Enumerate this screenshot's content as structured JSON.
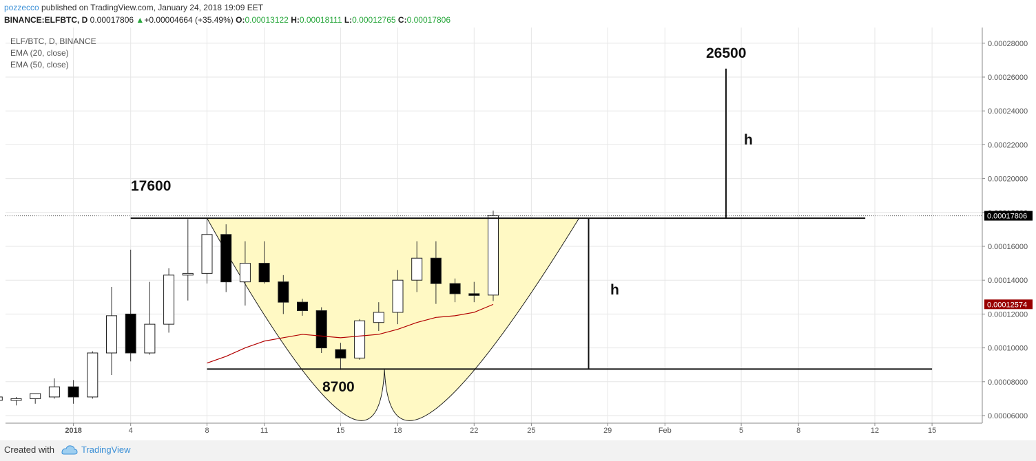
{
  "header": {
    "author": "pozzecco",
    "published_text": "published on TradingView.com, January 24, 2018 19:09 EET",
    "symbol_line": "BINANCE:ELFBTC, D",
    "last_price": "0.00017806",
    "change_arrow": "▲",
    "change": "+0.00004664 (+35.49%)",
    "open_label": "O:",
    "open": "0.00013122",
    "high_label": "H:",
    "high": "0.00018111",
    "low_label": "L:",
    "low": "0.00012765",
    "close_label": "C:",
    "close": "0.00017806"
  },
  "legend": {
    "symbol": "ELF/BTC, D, BINANCE",
    "ema20": "EMA (20, close)",
    "ema50": "EMA (50, close)"
  },
  "footer": {
    "created_with": "Created with",
    "brand": "TradingView"
  },
  "colors": {
    "up_candle": "#ffffff",
    "down_candle": "#000000",
    "ema_line": "#b20000",
    "cup_fill": "#fff9c4",
    "price_tag_last": "#000000",
    "price_tag_ema": "#990000",
    "grid": "#e6e6e6"
  },
  "chart_data": {
    "type": "candlestick",
    "title": "",
    "x_axis_ticks": [
      "2018",
      "4",
      "8",
      "11",
      "15",
      "18",
      "22",
      "25",
      "29",
      "Feb",
      "5",
      "8",
      "12",
      "15"
    ],
    "y_axis_ticks": [
      "0.00006000",
      "0.00008000",
      "0.00010000",
      "0.00012000",
      "0.00014000",
      "0.00016000",
      "0.00018000",
      "0.00020000",
      "0.00022000",
      "0.00024000",
      "0.00026000",
      "0.00028000"
    ],
    "ylim": [
      5.45e-05,
      2.92e-05
    ],
    "price_tags": [
      {
        "label": "0.00017806",
        "value": 0.00017806,
        "style": "last"
      },
      {
        "label": "0.00012574",
        "value": 0.00012574,
        "style": "ema"
      }
    ],
    "candles": [
      {
        "date": "2017-12-28",
        "o": 6.9e-05,
        "h": 7.3e-05,
        "l": 6.6e-05,
        "c": 7.1e-05
      },
      {
        "date": "2017-12-29",
        "o": 6.9e-05,
        "h": 7.1e-05,
        "l": 6.6e-05,
        "c": 7e-05
      },
      {
        "date": "2017-12-30",
        "o": 7e-05,
        "h": 7.3e-05,
        "l": 6.7e-05,
        "c": 7.3e-05
      },
      {
        "date": "2017-12-31",
        "o": 7.1e-05,
        "h": 8.2e-05,
        "l": 7e-05,
        "c": 7.7e-05
      },
      {
        "date": "2018-01-01",
        "o": 7.7e-05,
        "h": 8.1e-05,
        "l": 6.7e-05,
        "c": 7.1e-05
      },
      {
        "date": "2018-01-02",
        "o": 7.1e-05,
        "h": 9.8e-05,
        "l": 7e-05,
        "c": 9.7e-05
      },
      {
        "date": "2018-01-03",
        "o": 9.7e-05,
        "h": 0.000136,
        "l": 8.4e-05,
        "c": 0.000119
      },
      {
        "date": "2018-01-04",
        "o": 0.00012,
        "h": 0.000158,
        "l": 9.2e-05,
        "c": 9.7e-05
      },
      {
        "date": "2018-01-05",
        "o": 9.7e-05,
        "h": 0.000139,
        "l": 9.6e-05,
        "c": 0.000114
      },
      {
        "date": "2018-01-06",
        "o": 0.000114,
        "h": 0.000147,
        "l": 0.000109,
        "c": 0.000143
      },
      {
        "date": "2018-01-07",
        "o": 0.000143,
        "h": 0.000176,
        "l": 0.000128,
        "c": 0.000144
      },
      {
        "date": "2018-01-08",
        "o": 0.000144,
        "h": 0.000176,
        "l": 0.000138,
        "c": 0.000167
      },
      {
        "date": "2018-01-09",
        "o": 0.000167,
        "h": 0.000173,
        "l": 0.000133,
        "c": 0.000139
      },
      {
        "date": "2018-01-10",
        "o": 0.000139,
        "h": 0.000163,
        "l": 0.000125,
        "c": 0.00015
      },
      {
        "date": "2018-01-11",
        "o": 0.00015,
        "h": 0.000163,
        "l": 0.000138,
        "c": 0.000139
      },
      {
        "date": "2018-01-12",
        "o": 0.000139,
        "h": 0.000143,
        "l": 0.00012,
        "c": 0.000127
      },
      {
        "date": "2018-01-13",
        "o": 0.000127,
        "h": 0.000129,
        "l": 0.000119,
        "c": 0.000122
      },
      {
        "date": "2018-01-14",
        "o": 0.000122,
        "h": 0.000124,
        "l": 9.7e-05,
        "c": 0.0001
      },
      {
        "date": "2018-01-15",
        "o": 9.9e-05,
        "h": 0.000103,
        "l": 8.7e-05,
        "c": 9.4e-05
      },
      {
        "date": "2018-01-16",
        "o": 9.4e-05,
        "h": 0.000117,
        "l": 9.3e-05,
        "c": 0.000116
      },
      {
        "date": "2018-01-17",
        "o": 0.000115,
        "h": 0.000127,
        "l": 0.00011,
        "c": 0.000121
      },
      {
        "date": "2018-01-18",
        "o": 0.000121,
        "h": 0.000146,
        "l": 0.000114,
        "c": 0.00014
      },
      {
        "date": "2018-01-19",
        "o": 0.00014,
        "h": 0.000163,
        "l": 0.000133,
        "c": 0.000153
      },
      {
        "date": "2018-01-20",
        "o": 0.000153,
        "h": 0.000163,
        "l": 0.000126,
        "c": 0.000138
      },
      {
        "date": "2018-01-21",
        "o": 0.000138,
        "h": 0.000141,
        "l": 0.000127,
        "c": 0.000132
      },
      {
        "date": "2018-01-22",
        "o": 0.000132,
        "h": 0.000139,
        "l": 0.000127,
        "c": 0.000131
      },
      {
        "date": "2018-01-23",
        "o": 0.0001312,
        "h": 0.0001811,
        "l": 0.0001277,
        "c": 0.0001781
      }
    ],
    "ema_line": {
      "name": "EMA",
      "values": [
        {
          "date": "2018-01-08",
          "v": 9.1e-05
        },
        {
          "date": "2018-01-09",
          "v": 9.5e-05
        },
        {
          "date": "2018-01-10",
          "v": 0.0001
        },
        {
          "date": "2018-01-11",
          "v": 0.000104
        },
        {
          "date": "2018-01-12",
          "v": 0.000106
        },
        {
          "date": "2018-01-13",
          "v": 0.000108
        },
        {
          "date": "2018-01-14",
          "v": 0.000107
        },
        {
          "date": "2018-01-15",
          "v": 0.000106
        },
        {
          "date": "2018-01-16",
          "v": 0.000107
        },
        {
          "date": "2018-01-17",
          "v": 0.000108
        },
        {
          "date": "2018-01-18",
          "v": 0.000111
        },
        {
          "date": "2018-01-19",
          "v": 0.000115
        },
        {
          "date": "2018-01-20",
          "v": 0.000118
        },
        {
          "date": "2018-01-21",
          "v": 0.000119
        },
        {
          "date": "2018-01-22",
          "v": 0.000121
        },
        {
          "date": "2018-01-23",
          "v": 0.0001257
        }
      ]
    },
    "annotations": {
      "resistance_label": "17600",
      "support_label": "8700",
      "target_label": "26500",
      "height_label_1": "h",
      "height_label_2": "h"
    }
  }
}
